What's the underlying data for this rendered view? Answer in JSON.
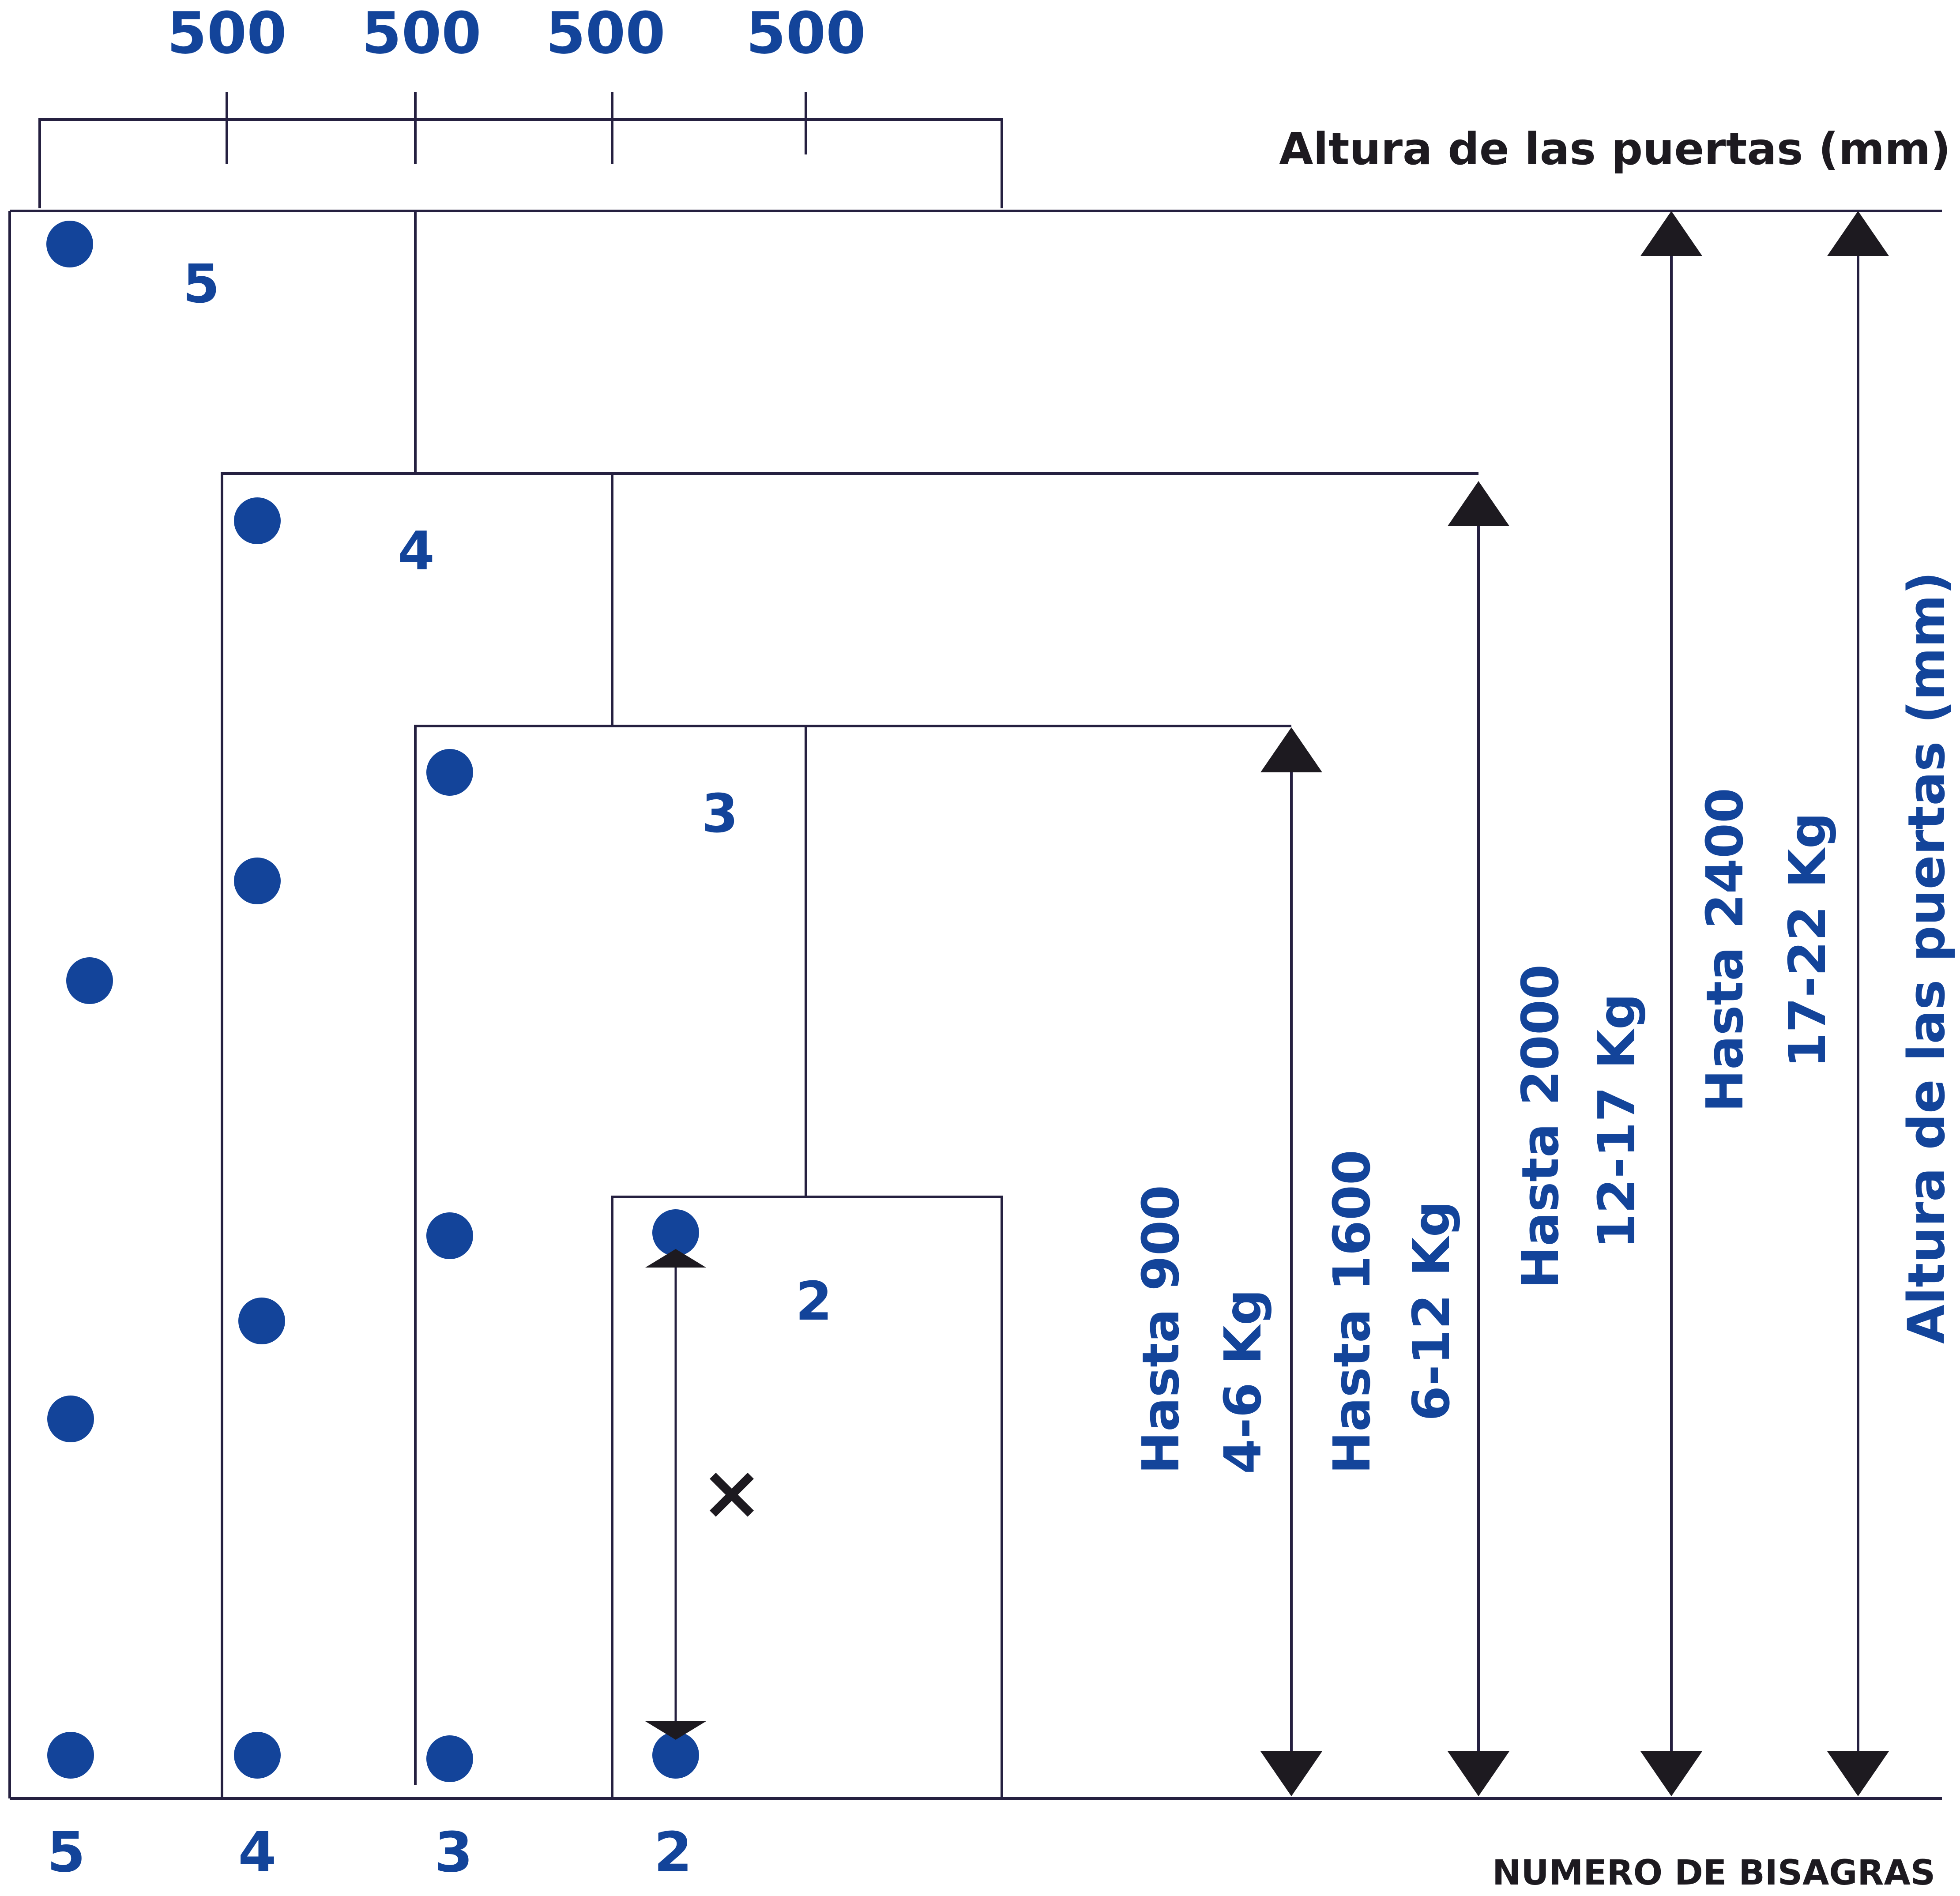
{
  "top_widths": [
    "500",
    "500",
    "500",
    "500"
  ],
  "top_axis_title": "Altura de las puertas (mm)",
  "right_axis_title": "Altura de las puertas (mm)",
  "bottom_axis_title": "NUMERO DE BISAGRAS",
  "hinge_counts_bottom": [
    "5",
    "4",
    "3",
    "2"
  ],
  "door_labels": [
    "5",
    "4",
    "3",
    "2"
  ],
  "ranges": [
    {
      "height": "Hasta 900",
      "weight": "4-6 Kg"
    },
    {
      "height": "Hasta 1600",
      "weight": "6-12 Kg"
    },
    {
      "height": "Hasta 2000",
      "weight": "12-17 Kg"
    },
    {
      "height": "Hasta 2400",
      "weight": "17-22 Kg"
    }
  ],
  "spacing_symbol": "×",
  "colors": {
    "accent": "#13449a",
    "line": "#252040",
    "text_dark": "#1d1a20"
  }
}
